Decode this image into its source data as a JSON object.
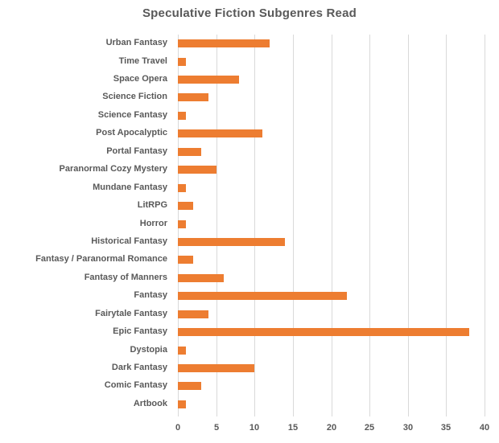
{
  "title": "Speculative Fiction Subgenres Read",
  "colors": {
    "bar": "#ED7D31",
    "gridline": "#d9d9d9",
    "label": "#595959",
    "title": "#595959",
    "background": "#ffffff"
  },
  "chart_data": {
    "type": "bar",
    "orientation": "horizontal",
    "title": "Speculative Fiction Subgenres Read",
    "categories": [
      "Urban Fantasy",
      "Time Travel",
      "Space Opera",
      "Science Fiction",
      "Science Fantasy",
      "Post Apocalyptic",
      "Portal Fantasy",
      "Paranormal Cozy Mystery",
      "Mundane Fantasy",
      "LitRPG",
      "Horror",
      "Historical Fantasy",
      "Fantasy / Paranormal Romance",
      "Fantasy of Manners",
      "Fantasy",
      "Fairytale Fantasy",
      "Epic Fantasy",
      "Dystopia",
      "Dark Fantasy",
      "Comic Fantasy",
      "Artbook"
    ],
    "values": [
      12,
      1,
      8,
      4,
      1,
      11,
      3,
      5,
      1,
      2,
      1,
      14,
      2,
      6,
      22,
      4,
      38,
      1,
      10,
      3,
      1
    ],
    "xlabel": "",
    "ylabel": "",
    "xlim": [
      0,
      40
    ],
    "x_ticks": [
      0,
      5,
      10,
      15,
      20,
      25,
      30,
      35,
      40
    ],
    "grid": true,
    "legend": "none"
  }
}
